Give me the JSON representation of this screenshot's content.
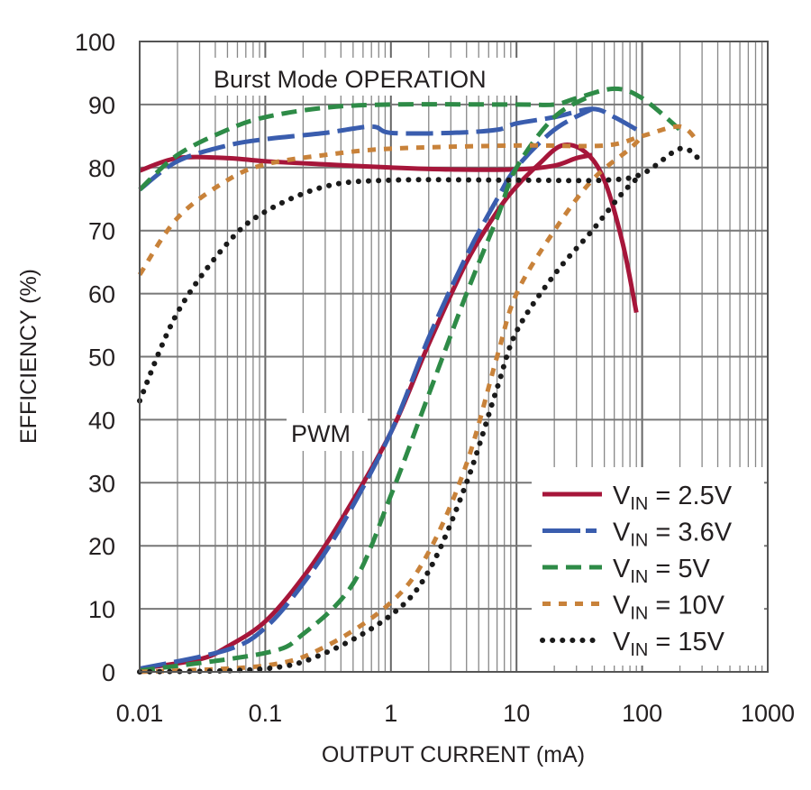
{
  "chart_data": {
    "type": "line",
    "xlabel": "OUTPUT CURRENT (mA)",
    "ylabel": "EFFICIENCY (%)",
    "x_scale": "log",
    "xlim": [
      0.01,
      1000
    ],
    "ylim": [
      0,
      100
    ],
    "x_ticks": [
      "0.01",
      "0.1",
      "1",
      "10",
      "100",
      "1000"
    ],
    "y_ticks": [
      "0",
      "10",
      "20",
      "30",
      "40",
      "50",
      "60",
      "70",
      "80",
      "90",
      "100"
    ],
    "grid": true,
    "legend_position": "bottom-right",
    "annotations": [
      "Burst Mode OPERATION",
      "PWM"
    ],
    "series": [
      {
        "name": "VIN = 2.5V",
        "color": "#a6163a",
        "style": "solid",
        "burst": [
          [
            0.01,
            79.5
          ],
          [
            0.02,
            81.5
          ],
          [
            0.05,
            81.5
          ],
          [
            0.1,
            81
          ],
          [
            0.3,
            80.5
          ],
          [
            1,
            80
          ],
          [
            3,
            79.7
          ],
          [
            10,
            79.7
          ],
          [
            20,
            80.3
          ],
          [
            30,
            81.5
          ],
          [
            40,
            82
          ]
        ],
        "pwm": [
          [
            0.01,
            0.5
          ],
          [
            0.03,
            2
          ],
          [
            0.05,
            4
          ],
          [
            0.1,
            8
          ],
          [
            0.2,
            15
          ],
          [
            0.4,
            24
          ],
          [
            1,
            38
          ],
          [
            2,
            52
          ],
          [
            4,
            65
          ],
          [
            7,
            73
          ],
          [
            10,
            77
          ],
          [
            15,
            80.5
          ],
          [
            23,
            83.5
          ],
          [
            35,
            82.5
          ],
          [
            50,
            78
          ],
          [
            70,
            68
          ],
          [
            90,
            57
          ]
        ]
      },
      {
        "name": "VIN = 3.6V",
        "color": "#3a5dae",
        "style": "long-dash",
        "burst": [
          [
            0.01,
            76.5
          ],
          [
            0.02,
            81
          ],
          [
            0.05,
            83.5
          ],
          [
            0.1,
            84.5
          ],
          [
            0.3,
            85.5
          ],
          [
            0.7,
            86.5
          ],
          [
            1,
            85.5
          ],
          [
            3,
            85.5
          ],
          [
            7,
            86
          ],
          [
            10,
            87
          ],
          [
            20,
            88
          ],
          [
            40,
            89.3
          ],
          [
            60,
            88
          ],
          [
            100,
            85.5
          ]
        ],
        "pwm": [
          [
            0.01,
            0.5
          ],
          [
            0.05,
            3.5
          ],
          [
            0.1,
            7
          ],
          [
            0.2,
            14
          ],
          [
            0.4,
            23
          ],
          [
            1,
            38
          ],
          [
            2,
            53
          ],
          [
            4,
            66
          ],
          [
            7,
            75
          ],
          [
            10,
            80
          ],
          [
            20,
            86
          ],
          [
            40,
            89.3
          ]
        ]
      },
      {
        "name": "VIN = 5V",
        "color": "#2e8b47",
        "style": "dash",
        "burst": [
          [
            0.01,
            76.5
          ],
          [
            0.02,
            82
          ],
          [
            0.05,
            86
          ],
          [
            0.1,
            88
          ],
          [
            0.3,
            89.5
          ],
          [
            1,
            90
          ],
          [
            10,
            90
          ],
          [
            20,
            90
          ],
          [
            30,
            91
          ],
          [
            60,
            92.5
          ],
          [
            100,
            91
          ],
          [
            200,
            86
          ]
        ],
        "pwm": [
          [
            0.01,
            0.2
          ],
          [
            0.1,
            3
          ],
          [
            0.2,
            6
          ],
          [
            0.5,
            14
          ],
          [
            1,
            28
          ],
          [
            2,
            44
          ],
          [
            4,
            60
          ],
          [
            7,
            72
          ],
          [
            10,
            80
          ],
          [
            20,
            88
          ],
          [
            40,
            91.5
          ]
        ]
      },
      {
        "name": "VIN = 10V",
        "color": "#c8823a",
        "style": "short-dash",
        "burst": [
          [
            0.01,
            63
          ],
          [
            0.02,
            72
          ],
          [
            0.05,
            78
          ],
          [
            0.1,
            80.5
          ],
          [
            0.3,
            82
          ],
          [
            1,
            83
          ],
          [
            10,
            83.5
          ],
          [
            50,
            83.5
          ],
          [
            100,
            85
          ],
          [
            200,
            86.5
          ],
          [
            280,
            84
          ]
        ],
        "pwm": [
          [
            0.01,
            0
          ],
          [
            0.1,
            1
          ],
          [
            0.3,
            4
          ],
          [
            1,
            11
          ],
          [
            2,
            19
          ],
          [
            4,
            33
          ],
          [
            7,
            50
          ],
          [
            10,
            60
          ],
          [
            20,
            70
          ],
          [
            40,
            78
          ],
          [
            80,
            83
          ],
          [
            100,
            85
          ]
        ]
      },
      {
        "name": "VIN = 15V",
        "color": "#1a1a1a",
        "style": "dotted",
        "burst": [
          [
            0.01,
            43
          ],
          [
            0.02,
            57
          ],
          [
            0.05,
            68
          ],
          [
            0.1,
            73
          ],
          [
            0.3,
            77
          ],
          [
            1,
            78
          ],
          [
            10,
            78
          ],
          [
            50,
            78
          ],
          [
            100,
            79
          ],
          [
            200,
            83
          ],
          [
            280,
            81.5
          ]
        ],
        "pwm": [
          [
            0.01,
            0
          ],
          [
            0.1,
            0.5
          ],
          [
            0.3,
            3
          ],
          [
            1,
            9
          ],
          [
            2,
            16
          ],
          [
            4,
            30
          ],
          [
            7,
            45
          ],
          [
            10,
            54
          ],
          [
            20,
            63
          ],
          [
            40,
            70
          ],
          [
            70,
            76
          ],
          [
            100,
            79
          ]
        ]
      }
    ]
  }
}
